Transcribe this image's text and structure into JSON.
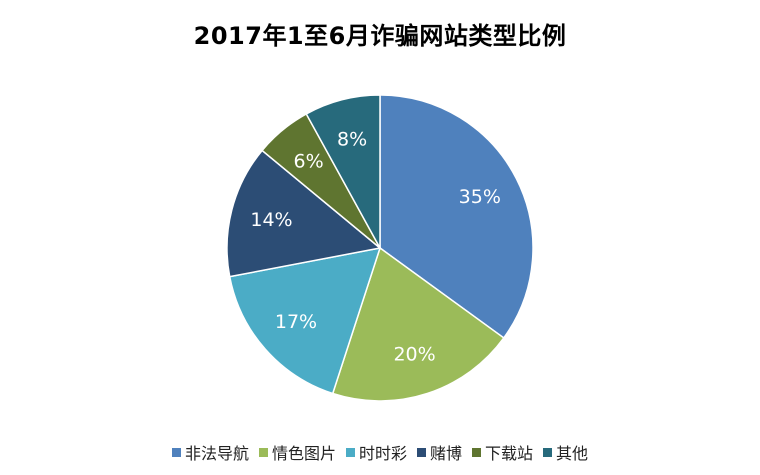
{
  "chart_data": {
    "type": "pie",
    "title": "2017年1至6月诈骗网站类型比例",
    "categories": [
      "非法导航",
      "情色图片",
      "时时彩",
      "赌博",
      "下载站",
      "其他"
    ],
    "values": [
      35,
      20,
      17,
      14,
      6,
      8
    ],
    "value_labels": [
      "35%",
      "20%",
      "17%",
      "14%",
      "6%",
      "8%"
    ],
    "colors": [
      "#4F81BD",
      "#9BBB59",
      "#4BACC6",
      "#2C4D75",
      "#5F7530",
      "#276A7C"
    ],
    "start_angle": "12 o'clock",
    "direction": "clockwise",
    "legend": "bottom"
  }
}
